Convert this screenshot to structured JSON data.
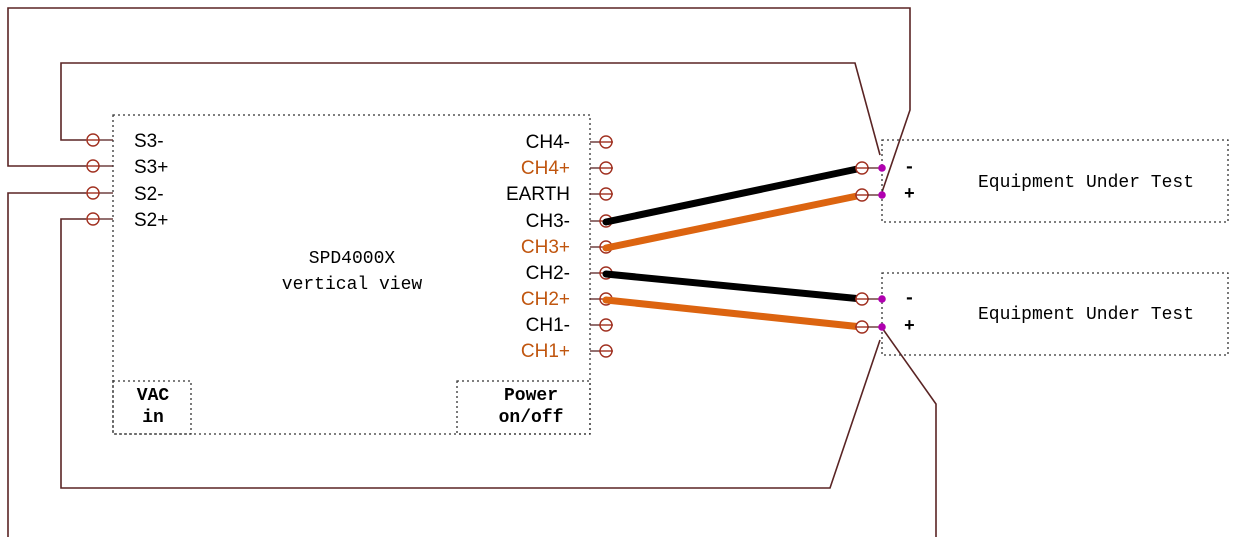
{
  "device": {
    "name": "SPD4000X",
    "subtitle": "vertical view",
    "vac_line1": "VAC",
    "vac_line2": "in",
    "power_line1": "Power",
    "power_line2": "on/off"
  },
  "sense_terminals": [
    "S3-",
    "S3+",
    "S2-",
    "S2+"
  ],
  "channel_terminals": [
    {
      "label": "CH4-",
      "color": "#000000"
    },
    {
      "label": "CH4+",
      "color": "#c0560f"
    },
    {
      "label": "EARTH",
      "color": "#000000"
    },
    {
      "label": "CH3-",
      "color": "#000000"
    },
    {
      "label": "CH3+",
      "color": "#c0560f"
    },
    {
      "label": "CH2-",
      "color": "#000000"
    },
    {
      "label": "CH2+",
      "color": "#c0560f"
    },
    {
      "label": "CH1-",
      "color": "#000000"
    },
    {
      "label": "CH1+",
      "color": "#c0560f"
    }
  ],
  "eut": [
    {
      "label": "Equipment Under Test",
      "minus": "-",
      "plus": "+"
    },
    {
      "label": "Equipment Under Test",
      "minus": "-",
      "plus": "+"
    }
  ],
  "colors": {
    "negative_wire": "#000000",
    "positive_wire": "#dc6410",
    "sense_wire": "#5a2424",
    "terminal": "#a03020",
    "sense_point": "#b000b0"
  }
}
